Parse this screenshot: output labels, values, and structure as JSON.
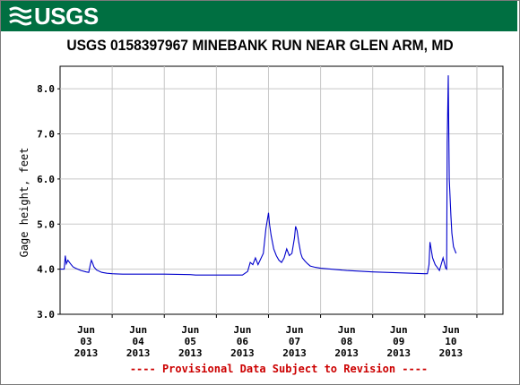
{
  "logo": {
    "text": "USGS",
    "icon": "usgs-wave-icon"
  },
  "colors": {
    "banner": "#006f41",
    "series": "#0000cc",
    "grid": "#c8c8c8",
    "provisional": "#cc0000"
  },
  "chart_data": {
    "type": "line",
    "title": "USGS 0158397967 MINEBANK RUN NEAR GLEN ARM, MD",
    "ylabel": "Gage height, feet",
    "xlabel": "",
    "ylim": [
      3.0,
      8.5
    ],
    "yticks": [
      "3.0",
      "4.0",
      "5.0",
      "6.0",
      "7.0",
      "8.0"
    ],
    "xlim": [
      0,
      8.5
    ],
    "xticks": [
      {
        "x": 0.5,
        "month": "Jun",
        "day": "03",
        "year": "2013"
      },
      {
        "x": 1.5,
        "month": "Jun",
        "day": "04",
        "year": "2013"
      },
      {
        "x": 2.5,
        "month": "Jun",
        "day": "05",
        "year": "2013"
      },
      {
        "x": 3.5,
        "month": "Jun",
        "day": "06",
        "year": "2013"
      },
      {
        "x": 4.5,
        "month": "Jun",
        "day": "07",
        "year": "2013"
      },
      {
        "x": 5.5,
        "month": "Jun",
        "day": "08",
        "year": "2013"
      },
      {
        "x": 6.5,
        "month": "Jun",
        "day": "09",
        "year": "2013"
      },
      {
        "x": 7.5,
        "month": "Jun",
        "day": "10",
        "year": "2013"
      }
    ],
    "grid": true,
    "series": [
      {
        "x": [
          0.0,
          0.08,
          0.1,
          0.12,
          0.15,
          0.2,
          0.25,
          0.3,
          0.4,
          0.5,
          0.55,
          0.58,
          0.6,
          0.62,
          0.65,
          0.7,
          0.8,
          0.9,
          1.0,
          1.2,
          1.5,
          2.0,
          2.5,
          2.6,
          3.0,
          3.5,
          3.6,
          3.65,
          3.7,
          3.75,
          3.8,
          3.9,
          3.95,
          4.0,
          4.02,
          4.05,
          4.1,
          4.15,
          4.2,
          4.25,
          4.3,
          4.35,
          4.4,
          4.45,
          4.5,
          4.52,
          4.55,
          4.58,
          4.62,
          4.65,
          4.7,
          4.75,
          4.8,
          4.9,
          5.0,
          5.5,
          6.0,
          6.5,
          7.0,
          7.05,
          7.08,
          7.1,
          7.15,
          7.2,
          7.25,
          7.28,
          7.3,
          7.35,
          7.4,
          7.42,
          7.43,
          7.45,
          7.46,
          7.47,
          7.5,
          7.52,
          7.55,
          7.6
        ],
        "y": [
          4.0,
          4.0,
          4.3,
          4.12,
          4.2,
          4.12,
          4.05,
          4.02,
          3.97,
          3.94,
          3.93,
          4.1,
          4.2,
          4.15,
          4.05,
          3.98,
          3.93,
          3.91,
          3.9,
          3.89,
          3.89,
          3.89,
          3.88,
          3.87,
          3.87,
          3.87,
          3.95,
          4.15,
          4.1,
          4.25,
          4.1,
          4.35,
          4.9,
          5.25,
          5.0,
          4.75,
          4.45,
          4.3,
          4.2,
          4.15,
          4.25,
          4.45,
          4.3,
          4.35,
          4.7,
          4.95,
          4.85,
          4.6,
          4.35,
          4.25,
          4.18,
          4.12,
          4.07,
          4.04,
          4.02,
          3.97,
          3.94,
          3.92,
          3.9,
          3.9,
          4.1,
          4.6,
          4.25,
          4.1,
          4.02,
          3.97,
          4.05,
          4.25,
          4.02,
          4.0,
          6.8,
          8.3,
          7.0,
          6.0,
          5.2,
          4.8,
          4.5,
          4.35
        ]
      }
    ],
    "annotations": [
      "---- Provisional Data Subject to Revision ----"
    ]
  }
}
